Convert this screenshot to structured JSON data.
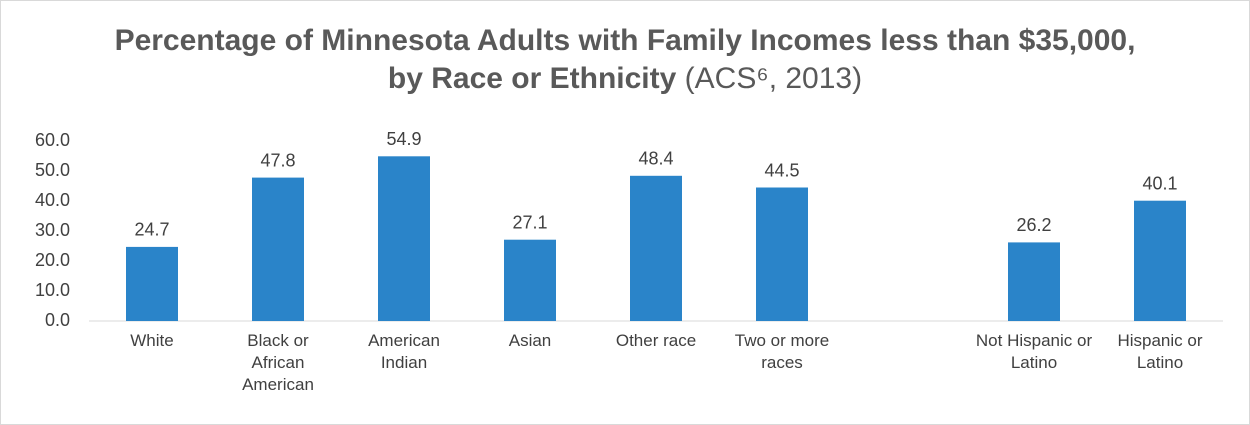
{
  "chart_data": {
    "type": "bar",
    "title": "Percentage of Minnesota Adults with Family Incomes less than $35,000, by Race or Ethnicity",
    "title_note": "(ACS⁶, 2013)",
    "categories": [
      "White",
      "Black or African American",
      "American Indian",
      "Asian",
      "Other race",
      "Two or more races",
      null,
      "Not Hispanic or Latino",
      "Hispanic or Latino"
    ],
    "values": [
      24.7,
      47.8,
      54.9,
      27.1,
      48.4,
      44.5,
      null,
      26.2,
      40.1
    ],
    "color": "#2a84c9",
    "ylim": [
      0,
      60
    ],
    "yticks": [
      {
        "value": 0,
        "label": "0.0"
      },
      {
        "value": 10,
        "label": "10.0"
      },
      {
        "value": 20,
        "label": "20.0"
      },
      {
        "value": 30,
        "label": "30.0"
      },
      {
        "value": 40,
        "label": "40.0"
      },
      {
        "value": 50,
        "label": "50.0"
      },
      {
        "value": 60,
        "label": "60.0"
      }
    ],
    "grid": false
  }
}
